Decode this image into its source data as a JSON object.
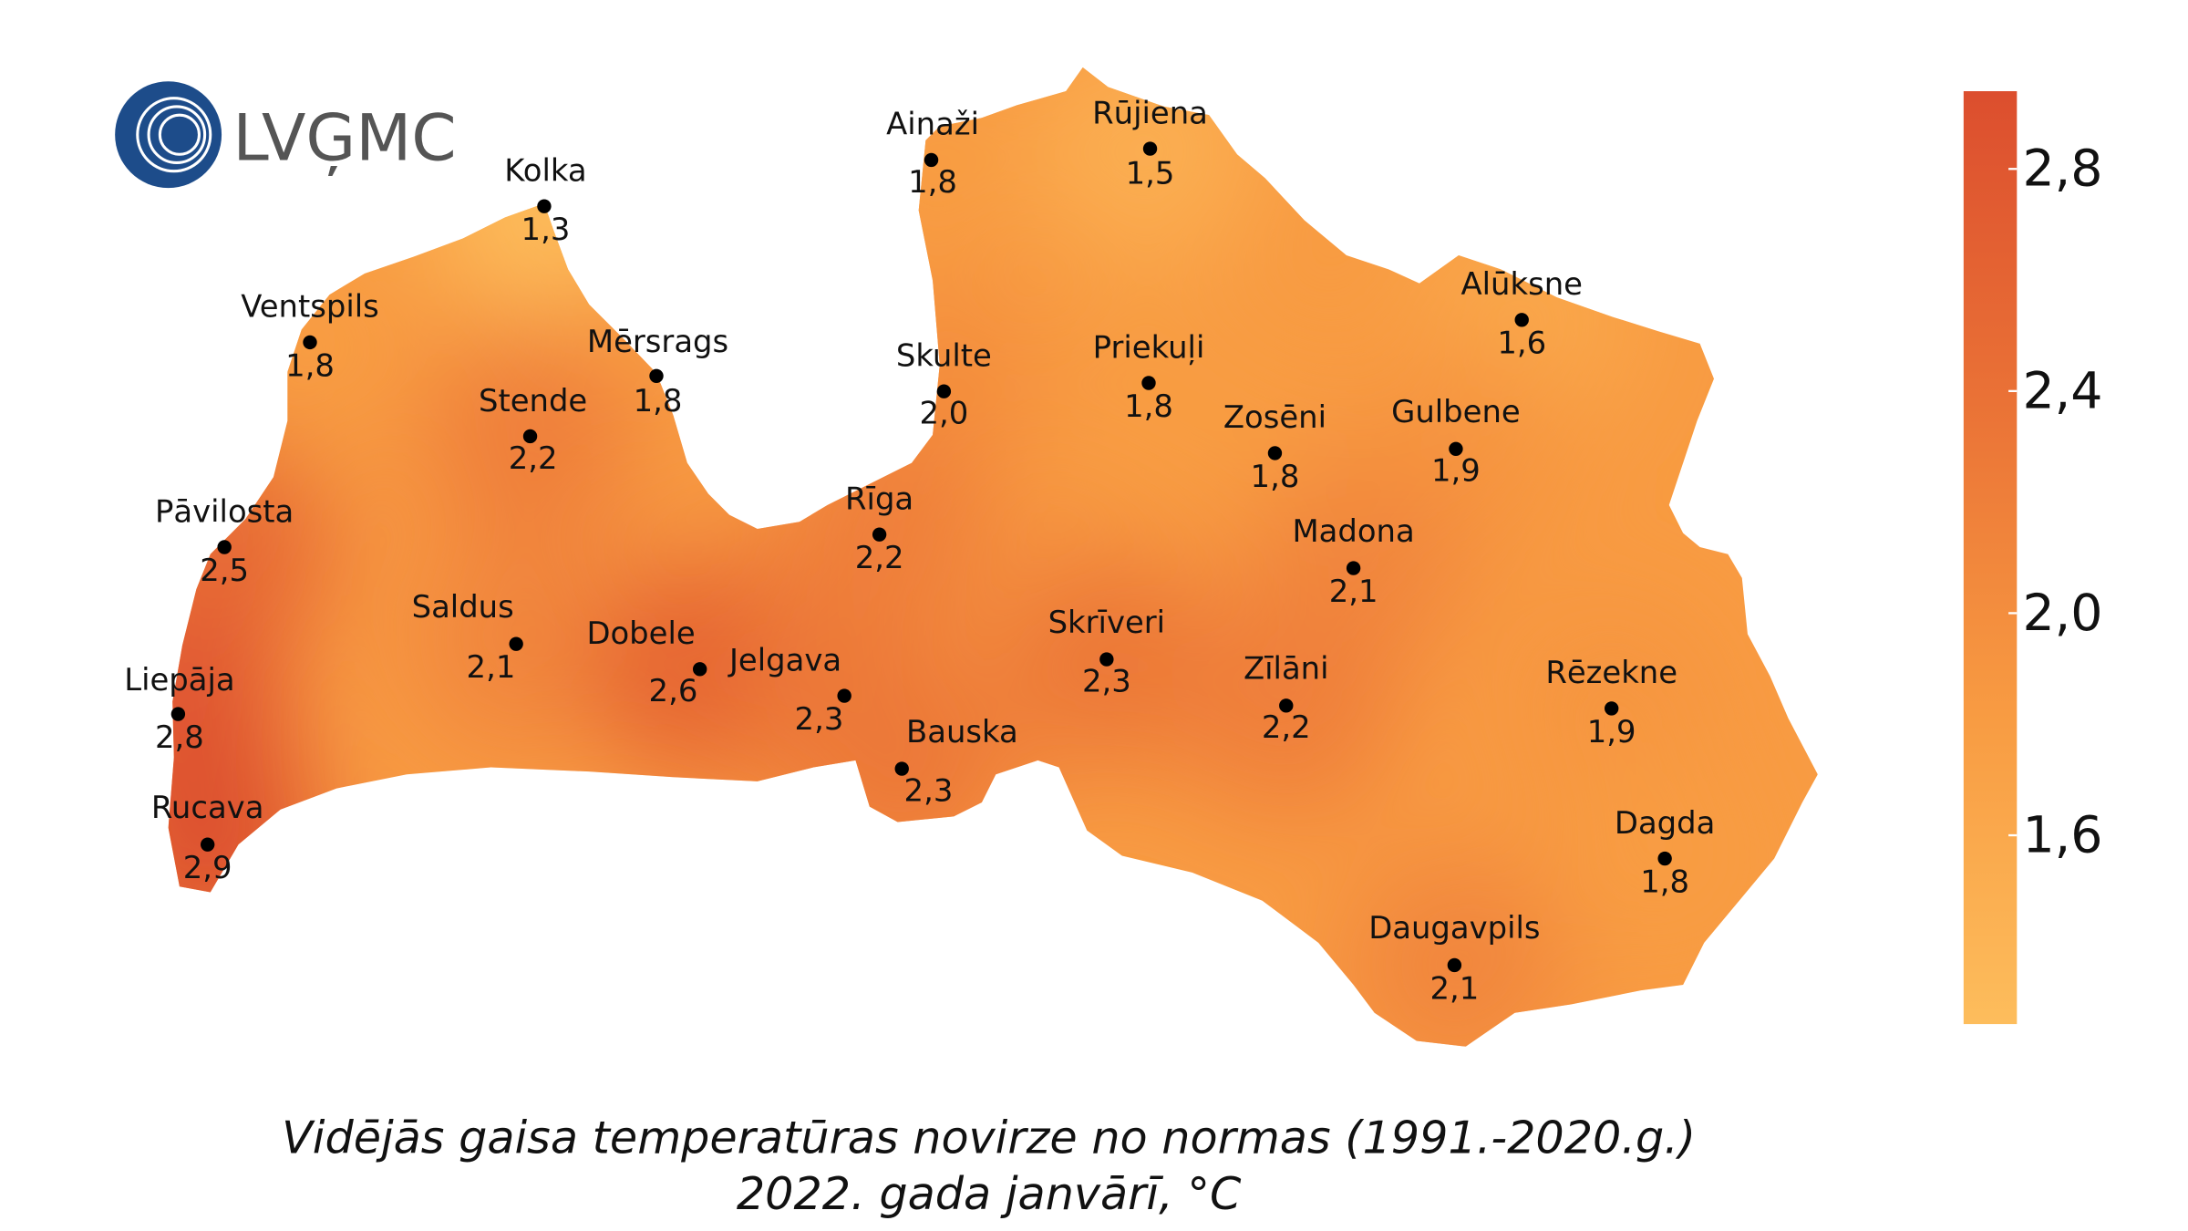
{
  "logo": "LVĢMC",
  "stations": [
    {
      "name": "Kolka",
      "value": 1.3,
      "label": "1,3"
    },
    {
      "name": "Ventspils",
      "value": 1.8,
      "label": "1,8"
    },
    {
      "name": "Mērsrags",
      "value": 1.8,
      "label": "1,8"
    },
    {
      "name": "Stende",
      "value": 2.2,
      "label": "2,2"
    },
    {
      "name": "Pāvilosta",
      "value": 2.5,
      "label": "2,5"
    },
    {
      "name": "Saldus",
      "value": 2.1,
      "label": "2,1"
    },
    {
      "name": "Dobele",
      "value": 2.6,
      "label": "2,6"
    },
    {
      "name": "Jelgava",
      "value": 2.3,
      "label": "2,3"
    },
    {
      "name": "Liepāja",
      "value": 2.8,
      "label": "2,8"
    },
    {
      "name": "Rucava",
      "value": 2.9,
      "label": "2,9"
    },
    {
      "name": "Ainaži",
      "value": 1.8,
      "label": "1,8"
    },
    {
      "name": "Rūjiena",
      "value": 1.5,
      "label": "1,5"
    },
    {
      "name": "Skulte",
      "value": 2.0,
      "label": "2,0"
    },
    {
      "name": "Rīga",
      "value": 2.2,
      "label": "2,2"
    },
    {
      "name": "Bauska",
      "value": 2.3,
      "label": "2,3"
    },
    {
      "name": "Priekuļi",
      "value": 1.8,
      "label": "1,8"
    },
    {
      "name": "Zosēni",
      "value": 1.8,
      "label": "1,8"
    },
    {
      "name": "Alūksne",
      "value": 1.6,
      "label": "1,6"
    },
    {
      "name": "Gulbene",
      "value": 1.9,
      "label": "1,9"
    },
    {
      "name": "Madona",
      "value": 2.1,
      "label": "2,1"
    },
    {
      "name": "Skrīveri",
      "value": 2.3,
      "label": "2,3"
    },
    {
      "name": "Zīlāni",
      "value": 2.2,
      "label": "2,2"
    },
    {
      "name": "Rēzekne",
      "value": 1.9,
      "label": "1,9"
    },
    {
      "name": "Dagda",
      "value": 1.8,
      "label": "1,8"
    },
    {
      "name": "Daugavpils",
      "value": 2.1,
      "label": "2,1"
    }
  ],
  "colorbar": {
    "range": [
      1.26,
      2.94
    ],
    "colors": [
      "#fdbd5c",
      "#f89b42",
      "#ea7236",
      "#dc4e2e"
    ],
    "ticks": [
      {
        "value": 1.6,
        "label": "1,6"
      },
      {
        "value": 2.0,
        "label": "2,0"
      },
      {
        "value": 2.4,
        "label": "2,4"
      },
      {
        "value": 2.8,
        "label": "2,8"
      }
    ]
  },
  "caption": [
    "Vidējās gaisa temperatūras novirze no normas (1991.-2020.g.)",
    "2022. gada janvārī, °C"
  ]
}
